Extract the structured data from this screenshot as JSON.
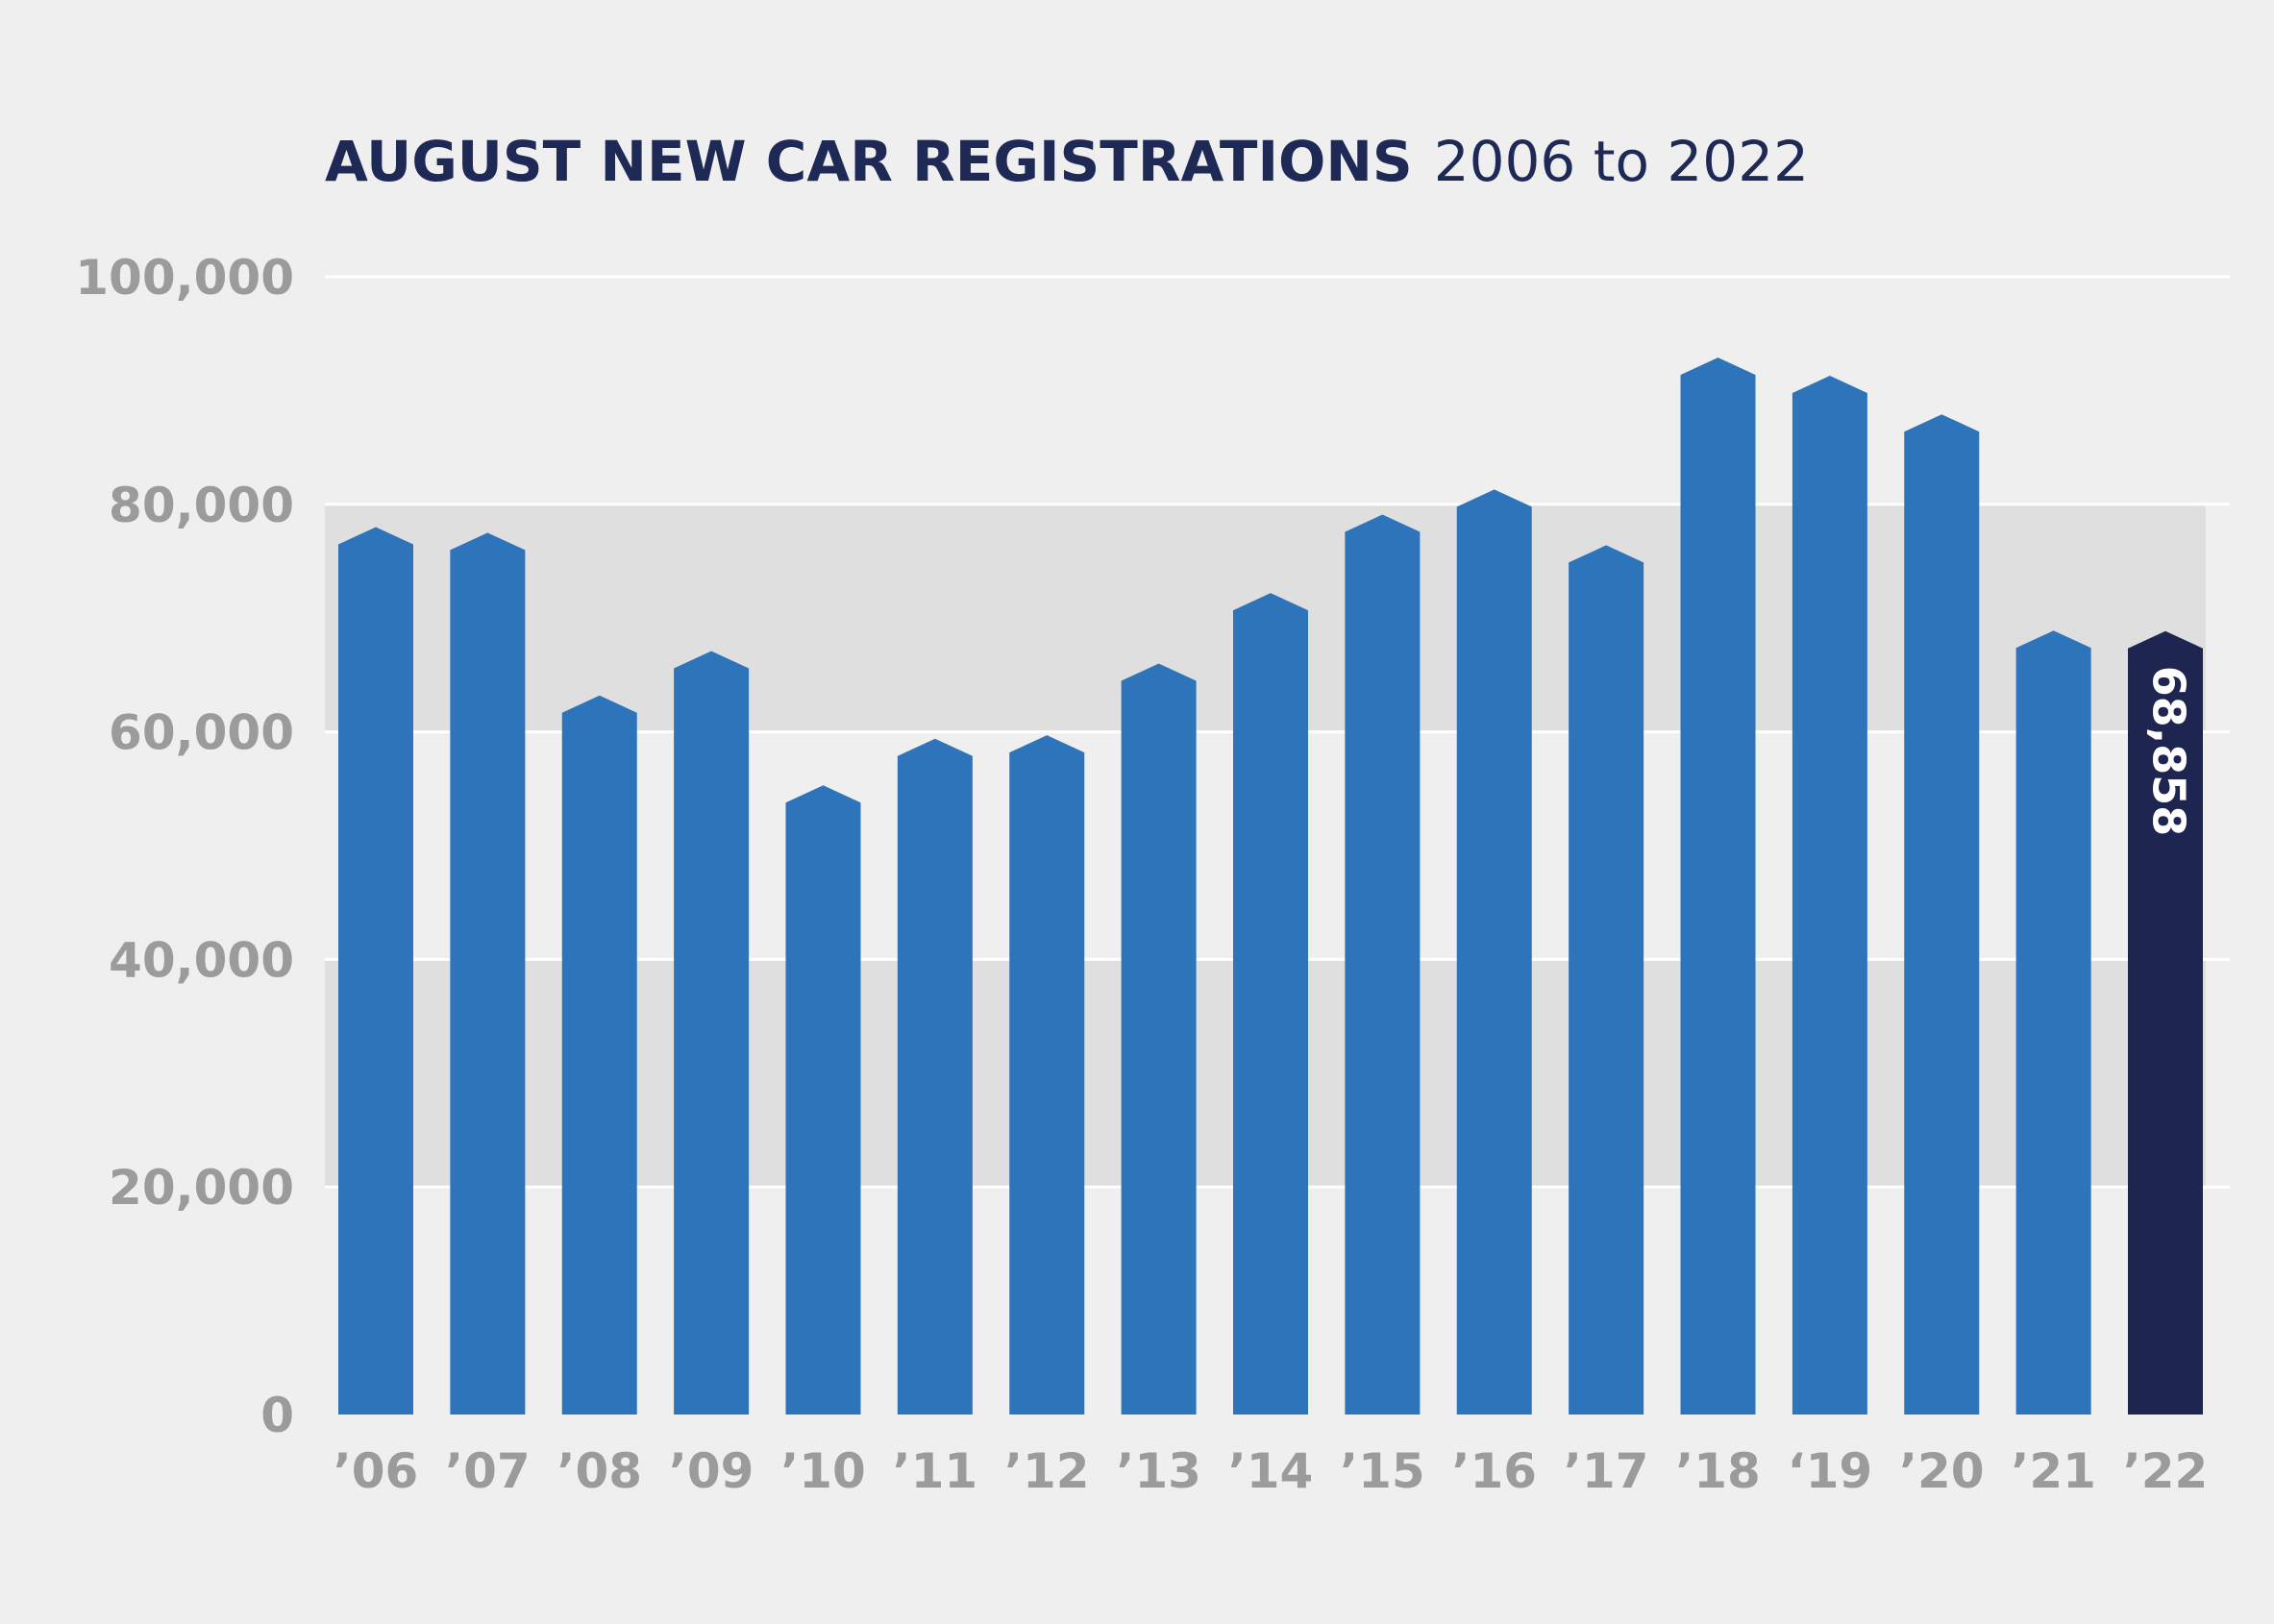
{
  "chart_data": {
    "type": "bar",
    "title": "AUGUST NEW CAR REGISTRATIONS",
    "subtitle": "2006 to 2022",
    "xlabel": "",
    "ylabel": "",
    "ylim": [
      0,
      100000
    ],
    "yticks": [
      0,
      20000,
      40000,
      60000,
      80000,
      100000
    ],
    "ytick_labels": [
      "0",
      "20,000",
      "40,000",
      "60,000",
      "80,000",
      "100,000"
    ],
    "grid": true,
    "categories": [
      "’06",
      "’07",
      "’08",
      "’09",
      "’10",
      "’11",
      "’12",
      "’13",
      "’14",
      "’15",
      "’16",
      "’17",
      "’18",
      "‘19",
      "’20",
      "’21",
      "’22"
    ],
    "values": [
      78000,
      77500,
      63200,
      67100,
      55300,
      59400,
      59700,
      66000,
      72200,
      79100,
      81300,
      76400,
      92900,
      91300,
      87900,
      68900,
      68858
    ],
    "highlight_index": 16,
    "highlight_label": "68,858",
    "colors": {
      "bar": "#2e74bb",
      "highlight": "#1e2550",
      "band": "#dfdfdf",
      "background": "#efefef",
      "gridline": "#ffffff",
      "title": "#1e2a55",
      "tick": "#9b9b9b"
    }
  }
}
